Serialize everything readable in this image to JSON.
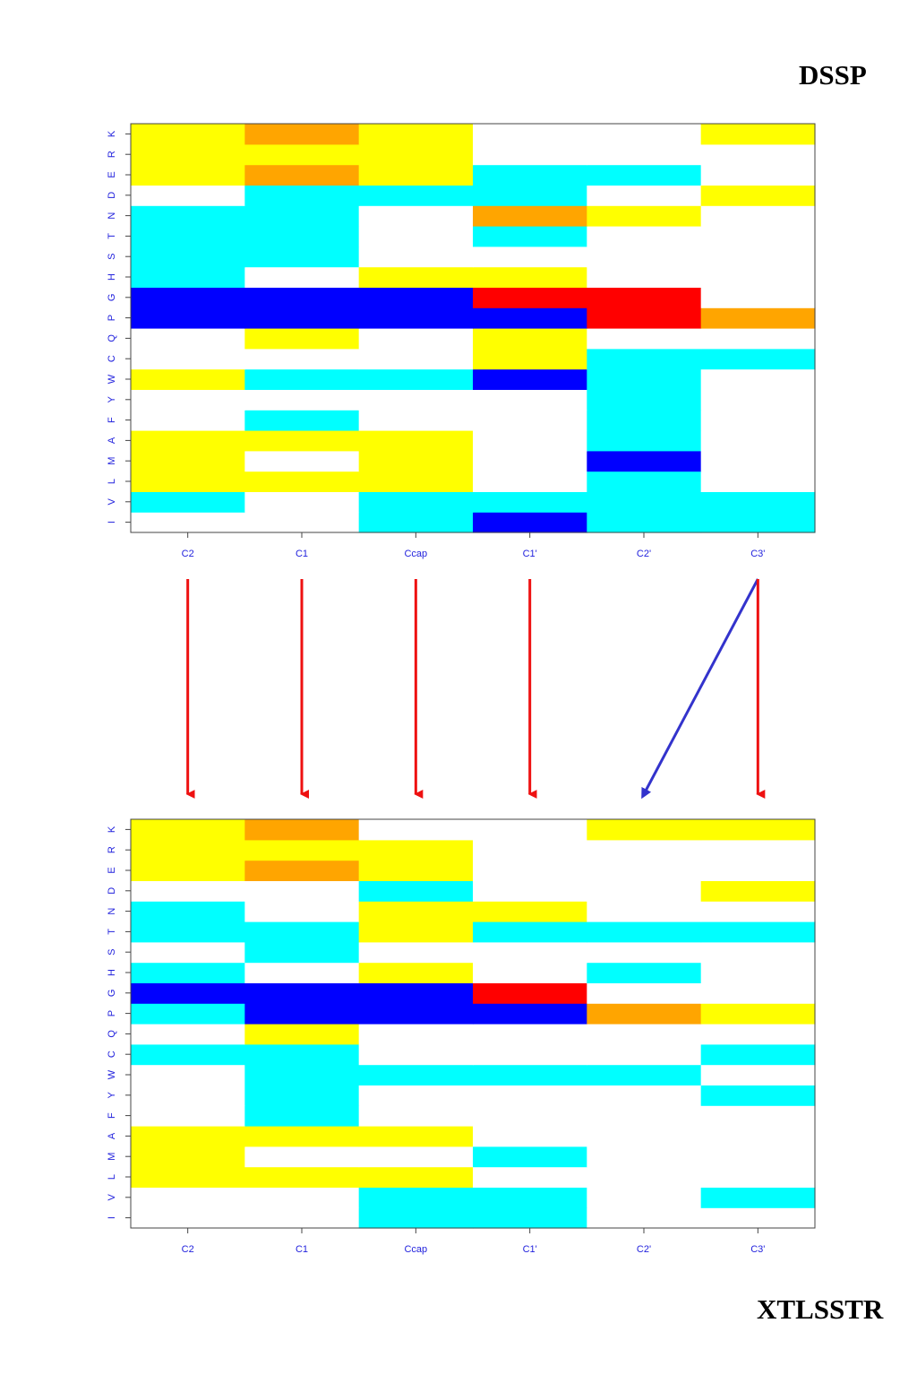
{
  "labels": {
    "top": "DSSP",
    "bottom": "XTLSSTR"
  },
  "colors": {
    "white": "#ffffff",
    "yellow": "#ffff00",
    "orange": "#ffa500",
    "cyan": "#00ffff",
    "blue": "#0000ff",
    "red": "#ff0000",
    "arrow_red": "#ee1111",
    "arrow_blue": "#3333cc",
    "tick_text": "#2222dd"
  },
  "chart_data": [
    {
      "type": "heatmap",
      "name": "DSSP",
      "x_categories": [
        "C2",
        "C1",
        "Ccap",
        "C1'",
        "C2'",
        "C3'"
      ],
      "y_categories": [
        "I",
        "V",
        "L",
        "M",
        "A",
        "F",
        "Y",
        "W",
        "C",
        "Q",
        "P",
        "G",
        "H",
        "S",
        "T",
        "N",
        "D",
        "E",
        "R",
        "K"
      ],
      "cells": [
        [
          "W",
          "W",
          "C",
          "B",
          "C",
          "C"
        ],
        [
          "C",
          "W",
          "C",
          "C",
          "C",
          "C"
        ],
        [
          "Y",
          "Y",
          "Y",
          "W",
          "C",
          "W"
        ],
        [
          "Y",
          "W",
          "Y",
          "W",
          "B",
          "W"
        ],
        [
          "Y",
          "Y",
          "Y",
          "W",
          "C",
          "W"
        ],
        [
          "W",
          "C",
          "W",
          "W",
          "C",
          "W"
        ],
        [
          "W",
          "W",
          "W",
          "W",
          "C",
          "W"
        ],
        [
          "Y",
          "C",
          "C",
          "B",
          "C",
          "W"
        ],
        [
          "W",
          "W",
          "W",
          "Y",
          "C",
          "C"
        ],
        [
          "W",
          "Y",
          "W",
          "Y",
          "W",
          "W"
        ],
        [
          "B",
          "B",
          "B",
          "B",
          "R",
          "O"
        ],
        [
          "B",
          "B",
          "B",
          "R",
          "R",
          "W"
        ],
        [
          "C",
          "W",
          "Y",
          "Y",
          "W",
          "W"
        ],
        [
          "C",
          "C",
          "W",
          "W",
          "W",
          "W"
        ],
        [
          "C",
          "C",
          "W",
          "C",
          "W",
          "W"
        ],
        [
          "C",
          "C",
          "W",
          "O",
          "Y",
          "W"
        ],
        [
          "W",
          "C",
          "C",
          "C",
          "W",
          "Y"
        ],
        [
          "Y",
          "O",
          "Y",
          "C",
          "C",
          "W"
        ],
        [
          "Y",
          "Y",
          "Y",
          "W",
          "W",
          "W"
        ],
        [
          "Y",
          "O",
          "Y",
          "W",
          "W",
          "Y"
        ]
      ]
    },
    {
      "type": "heatmap",
      "name": "XTLSSTR",
      "x_categories": [
        "C2",
        "C1",
        "Ccap",
        "C1'",
        "C2'",
        "C3'"
      ],
      "y_categories": [
        "I",
        "V",
        "L",
        "M",
        "A",
        "F",
        "Y",
        "W",
        "C",
        "Q",
        "P",
        "G",
        "H",
        "S",
        "T",
        "N",
        "D",
        "E",
        "R",
        "K"
      ],
      "cells": [
        [
          "W",
          "W",
          "C",
          "C",
          "W",
          "W"
        ],
        [
          "W",
          "W",
          "C",
          "C",
          "W",
          "C"
        ],
        [
          "Y",
          "Y",
          "Y",
          "W",
          "W",
          "W"
        ],
        [
          "Y",
          "W",
          "W",
          "C",
          "W",
          "W"
        ],
        [
          "Y",
          "Y",
          "Y",
          "W",
          "W",
          "W"
        ],
        [
          "W",
          "C",
          "W",
          "W",
          "W",
          "W"
        ],
        [
          "W",
          "C",
          "W",
          "W",
          "W",
          "C"
        ],
        [
          "W",
          "C",
          "C",
          "C",
          "C",
          "W"
        ],
        [
          "C",
          "C",
          "W",
          "W",
          "W",
          "C"
        ],
        [
          "W",
          "Y",
          "W",
          "W",
          "W",
          "W"
        ],
        [
          "C",
          "B",
          "B",
          "B",
          "O",
          "Y"
        ],
        [
          "B",
          "B",
          "B",
          "R",
          "W",
          "W"
        ],
        [
          "C",
          "W",
          "Y",
          "W",
          "C",
          "W"
        ],
        [
          "W",
          "C",
          "W",
          "W",
          "W",
          "W"
        ],
        [
          "C",
          "C",
          "Y",
          "C",
          "C",
          "C"
        ],
        [
          "C",
          "W",
          "Y",
          "Y",
          "W",
          "W"
        ],
        [
          "W",
          "W",
          "C",
          "W",
          "W",
          "Y"
        ],
        [
          "Y",
          "O",
          "Y",
          "W",
          "W",
          "W"
        ],
        [
          "Y",
          "Y",
          "Y",
          "W",
          "W",
          "W"
        ],
        [
          "Y",
          "O",
          "W",
          "W",
          "Y",
          "Y"
        ]
      ]
    }
  ],
  "arrows": [
    {
      "from": "C2",
      "to": "C2",
      "color": "red"
    },
    {
      "from": "C1",
      "to": "C1",
      "color": "red"
    },
    {
      "from": "Ccap",
      "to": "Ccap",
      "color": "red"
    },
    {
      "from": "C1'",
      "to": "C1'",
      "color": "red"
    },
    {
      "from": "C3'",
      "to": "C2'",
      "color": "blue"
    },
    {
      "from": "C3'",
      "to": "C3'",
      "color": "red"
    }
  ]
}
